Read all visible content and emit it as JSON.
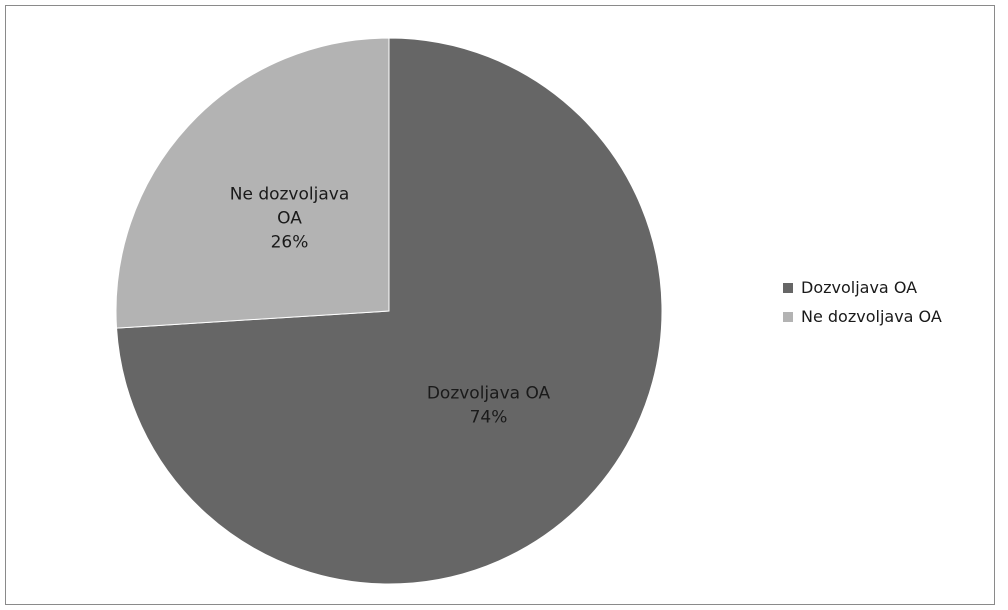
{
  "chart_data": {
    "type": "pie",
    "title": "",
    "categories": [
      "Dozvoljava OA",
      "Ne dozvoljava OA"
    ],
    "values": [
      74,
      26
    ],
    "unit": "%",
    "colors": [
      "#666666",
      "#b3b3b3"
    ],
    "start_angle_deg": 0,
    "direction": "clockwise",
    "data_labels": [
      {
        "lines": [
          "Dozvoljava OA",
          "74%"
        ]
      },
      {
        "lines": [
          "Ne dozvoljava",
          "OA",
          "26%"
        ]
      }
    ],
    "legend": {
      "position": "right",
      "entries": [
        "Dozvoljava OA",
        "Ne dozvoljava OA"
      ]
    }
  }
}
